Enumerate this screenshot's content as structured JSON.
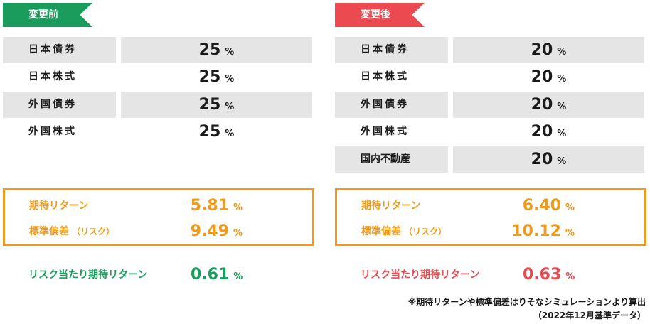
{
  "before": {
    "tag": "変更前",
    "allocations": [
      {
        "label": "日本債券",
        "value": "25",
        "unit": "%"
      },
      {
        "label": "日本株式",
        "value": "25",
        "unit": "%"
      },
      {
        "label": "外国債券",
        "value": "25",
        "unit": "%"
      },
      {
        "label": "外国株式",
        "value": "25",
        "unit": "%"
      }
    ],
    "expected_return": {
      "label": "期待リターン",
      "value": "5.81",
      "unit": "%"
    },
    "std_dev": {
      "label": "標準偏差",
      "sub": "（リスク）",
      "value": "9.49",
      "unit": "%"
    },
    "risk_return": {
      "label": "リスク当たり期待リターン",
      "value": "0.61",
      "unit": "%"
    }
  },
  "after": {
    "tag": "変更後",
    "allocations": [
      {
        "label": "日本債券",
        "value": "20",
        "unit": "%"
      },
      {
        "label": "日本株式",
        "value": "20",
        "unit": "%"
      },
      {
        "label": "外国債券",
        "value": "20",
        "unit": "%"
      },
      {
        "label": "外国株式",
        "value": "20",
        "unit": "%"
      },
      {
        "label": "国内不動産",
        "value": "20",
        "unit": "%"
      }
    ],
    "expected_return": {
      "label": "期待リターン",
      "value": "6.40",
      "unit": "%"
    },
    "std_dev": {
      "label": "標準偏差",
      "sub": "（リスク）",
      "value": "10.12",
      "unit": "%"
    },
    "risk_return": {
      "label": "リスク当たり期待リターン",
      "value": "0.63",
      "unit": "%"
    }
  },
  "note": {
    "line1": "※期待リターンや標準偏差はりそなシミュレーションより算出",
    "line2": "（2022年12月基準データ）"
  },
  "colors": {
    "before_accent": "#1a9d5c",
    "after_accent": "#ea4a50",
    "metrics_accent": "#f09a1b",
    "row_shade": "#e5e5e5"
  }
}
